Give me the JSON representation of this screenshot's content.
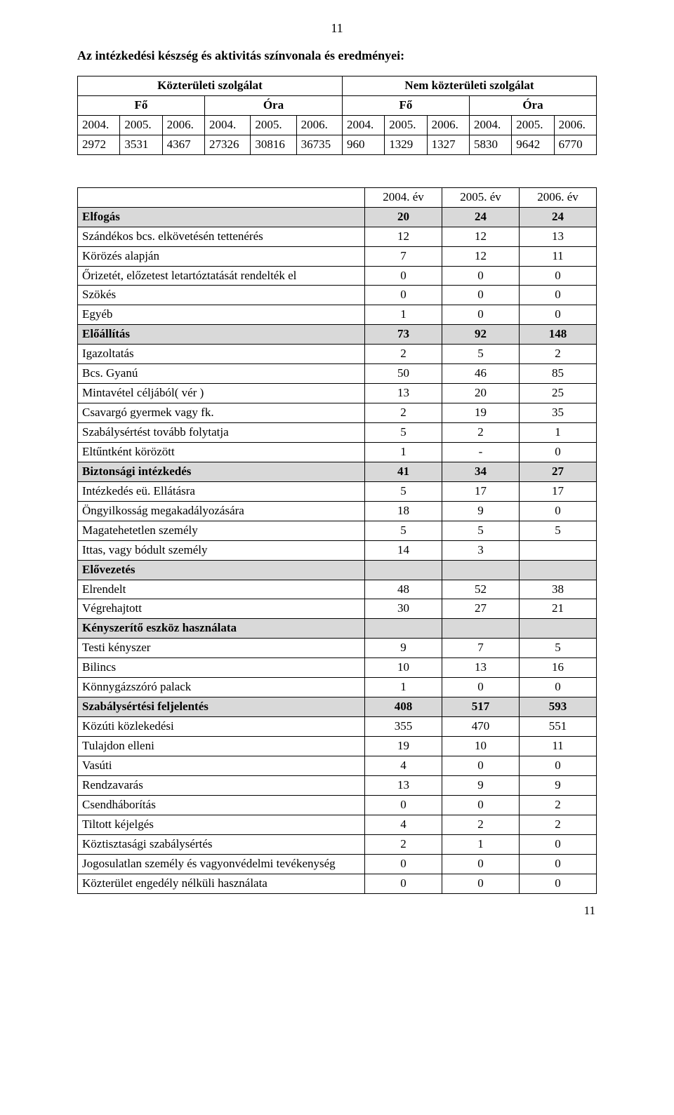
{
  "pageNumberTop": "11",
  "pageNumberBottom": "11",
  "title": "Az intézkedési készség és aktivitás színvonala és eredményei:",
  "table1": {
    "group_headers": [
      "Közterületi szolgálat",
      "Nem közterületi szolgálat"
    ],
    "sub_headers": [
      "Fő",
      "Óra",
      "Fő",
      "Óra"
    ],
    "year_headers": [
      "2004.",
      "2005.",
      "2006.",
      "2004.",
      "2005.",
      "2006.",
      "2004.",
      "2005.",
      "2006.",
      "2004.",
      "2005.",
      "2006."
    ],
    "values": [
      "2972",
      "3531",
      "4367",
      "27326",
      "30816",
      "36735",
      "960",
      "1329",
      "1327",
      "5830",
      "9642",
      "6770"
    ]
  },
  "table2": {
    "headers": [
      "2004. év",
      "2005. év",
      "2006. év"
    ],
    "rows": [
      {
        "label": "Elfogás",
        "v": [
          "20",
          "24",
          "24"
        ],
        "bold": true,
        "shade": true
      },
      {
        "label": "Szándékos bcs. elkövetésén tettenérés",
        "v": [
          "12",
          "12",
          "13"
        ]
      },
      {
        "label": "Körözés alapján",
        "v": [
          "7",
          "12",
          "11"
        ]
      },
      {
        "label": "Őrizetét, előzetest letartóztatását rendelték el",
        "v": [
          "0",
          "0",
          "0"
        ]
      },
      {
        "label": "Szökés",
        "v": [
          "0",
          "0",
          "0"
        ]
      },
      {
        "label": "Egyéb",
        "v": [
          "1",
          "0",
          "0"
        ]
      },
      {
        "label": "Előállítás",
        "v": [
          "73",
          "92",
          "148"
        ],
        "bold": true,
        "shade": true
      },
      {
        "label": "Igazoltatás",
        "v": [
          "2",
          "5",
          "2"
        ]
      },
      {
        "label": "Bcs. Gyanú",
        "v": [
          "50",
          "46",
          "85"
        ]
      },
      {
        "label": "Mintavétel céljából( vér )",
        "v": [
          "13",
          "20",
          "25"
        ]
      },
      {
        "label": "Csavargó gyermek vagy fk.",
        "v": [
          "2",
          "19",
          "35"
        ]
      },
      {
        "label": "Szabálysértést tovább folytatja",
        "v": [
          "5",
          "2",
          "1"
        ]
      },
      {
        "label": "Eltűntként körözött",
        "v": [
          "1",
          "-",
          "0"
        ]
      },
      {
        "label": "Biztonsági intézkedés",
        "v": [
          "41",
          "34",
          "27"
        ],
        "bold": true,
        "shade": true
      },
      {
        "label": "Intézkedés eü. Ellátásra",
        "v": [
          "5",
          "17",
          "17"
        ]
      },
      {
        "label": "Öngyilkosság megakadályozására",
        "v": [
          "18",
          "9",
          "0"
        ]
      },
      {
        "label": "Magatehetetlen személy",
        "v": [
          "5",
          "5",
          "5"
        ]
      },
      {
        "label": "Ittas, vagy bódult személy",
        "v": [
          "14",
          "3",
          ""
        ]
      },
      {
        "label": "Elővezetés",
        "v": [
          "",
          "",
          ""
        ],
        "bold": true,
        "shade": true
      },
      {
        "label": "Elrendelt",
        "v": [
          "48",
          "52",
          "38"
        ]
      },
      {
        "label": "Végrehajtott",
        "v": [
          "30",
          "27",
          "21"
        ]
      },
      {
        "label": "Kényszerítő eszköz használata",
        "v": [
          "",
          "",
          ""
        ],
        "bold": true,
        "shade": true
      },
      {
        "label": "Testi kényszer",
        "v": [
          "9",
          "7",
          "5"
        ]
      },
      {
        "label": "Bilincs",
        "v": [
          "10",
          "13",
          "16"
        ]
      },
      {
        "label": "Könnygázszóró palack",
        "v": [
          "1",
          "0",
          "0"
        ]
      },
      {
        "label": "Szabálysértési feljelentés",
        "v": [
          "408",
          "517",
          "593"
        ],
        "bold": true,
        "shade": true
      },
      {
        "label": "Közúti közlekedési",
        "v": [
          "355",
          "470",
          "551"
        ]
      },
      {
        "label": "Tulajdon elleni",
        "v": [
          "19",
          "10",
          "11"
        ]
      },
      {
        "label": "Vasúti",
        "v": [
          "4",
          "0",
          "0"
        ]
      },
      {
        "label": "Rendzavarás",
        "v": [
          "13",
          "9",
          "9"
        ]
      },
      {
        "label": "Csendháborítás",
        "v": [
          "0",
          "0",
          "2"
        ]
      },
      {
        "label": "Tiltott kéjelgés",
        "v": [
          "4",
          "2",
          "2"
        ]
      },
      {
        "label": "Köztisztasági szabálysértés",
        "v": [
          "2",
          "1",
          "0"
        ]
      },
      {
        "label": "Jogosulatlan személy és vagyonvédelmi tevékenység",
        "v": [
          "0",
          "0",
          "0"
        ]
      },
      {
        "label": "Közterület engedély nélküli használata",
        "v": [
          "0",
          "0",
          "0"
        ]
      }
    ]
  }
}
